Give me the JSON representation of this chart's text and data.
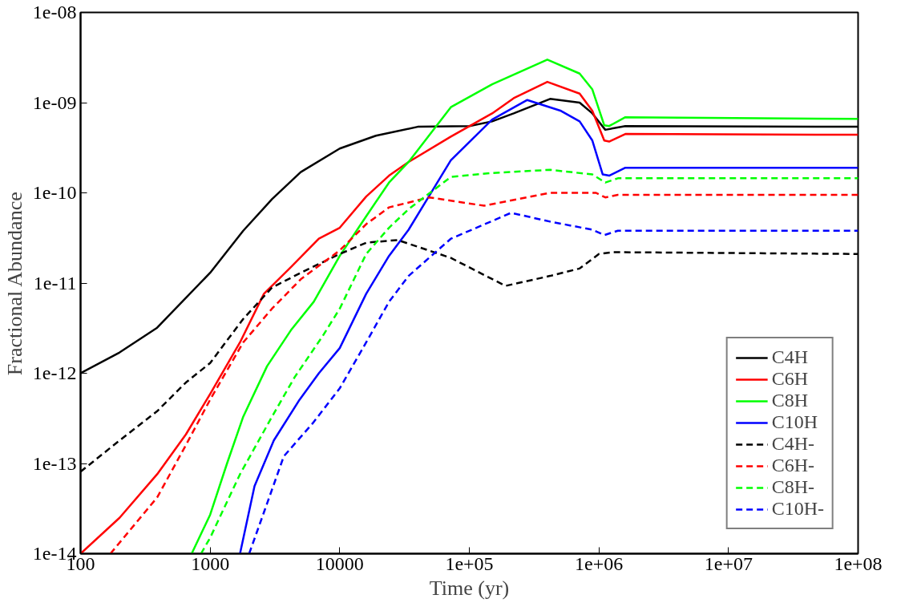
{
  "chart_data": {
    "type": "line",
    "xlabel": "Time (yr)",
    "ylabel": "Fractional Abundance",
    "log": "xy",
    "grid": false,
    "legend": "bottom right",
    "xlim": [
      100,
      100000000.0
    ],
    "ylim": [
      1e-14,
      1e-08
    ],
    "xticks": [
      100,
      1000,
      10000,
      {
        "value": 100000.0,
        "label": "1e+05"
      },
      {
        "value": 1000000.0,
        "label": "1e+06"
      },
      {
        "value": 10000000.0,
        "label": "1e+07"
      },
      {
        "value": 100000000.0,
        "label": "1e+08"
      }
    ],
    "yticks": [
      {
        "value": 1e-14,
        "label": "1e-14"
      },
      {
        "value": 1e-13,
        "label": "1e-13"
      },
      {
        "value": 1e-12,
        "label": "1e-12"
      },
      {
        "value": 1e-11,
        "label": "1e-11"
      },
      {
        "value": 1e-10,
        "label": "1e-10"
      },
      {
        "value": 1e-09,
        "label": "1e-09"
      },
      {
        "value": 1e-08,
        "label": "1e-08"
      }
    ],
    "series": [
      {
        "name": "C4H",
        "color": "#000000",
        "line_style": "solid",
        "x": [
          100,
          200,
          390,
          1000,
          1800,
          3000,
          5000,
          10000.0,
          19000.0,
          40000.0,
          100000.0,
          150000.0,
          220000.0,
          420000.0,
          710000.0,
          890000.0,
          1120000.0,
          1600000.0,
          100000000.0
        ],
        "values": [
          1e-12,
          1.7e-12,
          3.2e-12,
          1.3e-11,
          3.8e-11,
          8.5e-11,
          1.7e-10,
          3.1e-10,
          4.3e-10,
          5.4e-10,
          5.5e-10,
          6.2e-10,
          7.6e-10,
          1.1e-09,
          1e-09,
          7.6e-10,
          5e-10,
          5.5e-10,
          5.4e-10
        ]
      },
      {
        "name": "C6H",
        "color": "#ff0000",
        "line_style": "solid",
        "x": [
          100,
          200,
          390,
          650,
          1000,
          1700,
          2600,
          4200,
          6900,
          10000.0,
          16000.0,
          24000.0,
          34000.0,
          72000.0,
          150000.0,
          220000.0,
          400000.0,
          710000.0,
          890000.0,
          1100000.0,
          1200000.0,
          1600000.0,
          100000000.0
        ],
        "values": [
          1e-14,
          2.5e-14,
          7.6e-14,
          2.1e-13,
          5.9e-13,
          2.2e-12,
          7.6e-12,
          1.5e-11,
          3.1e-11,
          4.1e-11,
          9.1e-11,
          1.55e-10,
          2.2e-10,
          4.2e-10,
          7.6e-10,
          1.12e-09,
          1.7e-09,
          1.26e-09,
          8.1e-10,
          3.8e-10,
          3.7e-10,
          4.5e-10,
          4.4e-10
        ]
      },
      {
        "name": "C8H",
        "color": "#00ff00",
        "line_style": "solid",
        "x": [
          720,
          1000,
          1350,
          1800,
          2750,
          4200,
          6300,
          10000.0,
          16000.0,
          24000.0,
          34000.0,
          72000.0,
          150000.0,
          400000.0,
          710000.0,
          890000.0,
          1100000.0,
          1200000.0,
          1600000.0,
          100000000.0
        ],
        "values": [
          1e-14,
          2.7e-14,
          1e-13,
          3.3e-13,
          1.2e-12,
          3e-12,
          6.2e-12,
          2e-11,
          5.5e-11,
          1.3e-10,
          2.2e-10,
          8.9e-10,
          1.6e-09,
          3e-09,
          2.1e-09,
          1.4e-09,
          5.6e-10,
          5.5e-10,
          6.9e-10,
          6.6e-10
        ]
      },
      {
        "name": "C10H",
        "color": "#0000ff",
        "line_style": "solid",
        "x": [
          1700,
          2200,
          3100,
          4900,
          6900,
          10000.0,
          16000.0,
          24000.0,
          34000.0,
          72000.0,
          150000.0,
          280000.0,
          510000.0,
          710000.0,
          890000.0,
          1070000.0,
          1200000.0,
          1600000.0,
          100000000.0
        ],
        "values": [
          1e-14,
          5.6e-14,
          1.8e-13,
          5.1e-13,
          1e-12,
          1.9e-12,
          7.6e-12,
          2e-11,
          3.9e-11,
          2.3e-10,
          6.5e-10,
          1.07e-09,
          8.1e-10,
          6.2e-10,
          3.8e-10,
          1.6e-10,
          1.55e-10,
          1.9e-10,
          1.9e-10
        ]
      },
      {
        "name": "C4H-",
        "color": "#000000",
        "line_style": "dashed",
        "x": [
          100,
          200,
          390,
          650,
          1000,
          1800,
          3000,
          5000,
          10000.0,
          16000.0,
          28000.0,
          72000.0,
          190000.0,
          420000.0,
          710000.0,
          1000000.0,
          1300000.0,
          100000000.0
        ],
        "values": [
          8.1e-14,
          1.8e-13,
          3.8e-13,
          7.9e-13,
          1.3e-12,
          4e-12,
          8.9e-12,
          1.3e-11,
          2.1e-11,
          2.8e-11,
          3e-11,
          1.9e-11,
          9.3e-12,
          1.2e-11,
          1.45e-11,
          2.1e-11,
          2.2e-11,
          2.1e-11
        ]
      },
      {
        "name": "C6H-",
        "color": "#ff0000",
        "line_style": "dashed",
        "x": [
          170,
          390,
          650,
          1000,
          1800,
          3000,
          5000,
          10000.0,
          16000.0,
          24000.0,
          49000.0,
          130000.0,
          420000.0,
          950000.0,
          1120000.0,
          1400000.0,
          100000000.0
        ],
        "values": [
          1e-14,
          4.2e-14,
          1.6e-13,
          5.1e-13,
          2.2e-12,
          5.2e-12,
          1.1e-11,
          2.3e-11,
          4.5e-11,
          6.9e-11,
          8.9e-11,
          7.2e-11,
          1e-10,
          1e-10,
          8.9e-11,
          9.5e-11,
          9.5e-11
        ]
      },
      {
        "name": "C8H-",
        "color": "#00ff00",
        "line_style": "dashed",
        "x": [
          850,
          1000,
          1700,
          3000,
          4500,
          7400,
          10000.0,
          16000.0,
          24000.0,
          34000.0,
          72000.0,
          150000.0,
          420000.0,
          890000.0,
          1120000.0,
          1400000.0,
          100000000.0
        ],
        "values": [
          1e-14,
          1.5e-14,
          7.6e-14,
          3.3e-13,
          9.1e-13,
          2.6e-12,
          5.2e-12,
          2.1e-11,
          4.1e-11,
          6.6e-11,
          1.5e-10,
          1.66e-10,
          1.8e-10,
          1.6e-10,
          1.3e-10,
          1.45e-10,
          1.45e-10
        ]
      },
      {
        "name": "C10H-",
        "color": "#0000ff",
        "line_style": "dashed",
        "x": [
          2000,
          2750,
          3700,
          6200,
          10000.0,
          16000.0,
          24000.0,
          34000.0,
          72000.0,
          210000.0,
          420000.0,
          890000.0,
          1100000.0,
          1400000.0,
          100000000.0
        ],
        "values": [
          1e-14,
          3.6e-14,
          1.2e-13,
          2.8e-13,
          6.8e-13,
          2.2e-12,
          6.2e-12,
          1.2e-11,
          3.1e-11,
          6e-11,
          4.8e-11,
          3.9e-11,
          3.4e-11,
          3.8e-11,
          3.8e-11
        ]
      }
    ]
  }
}
